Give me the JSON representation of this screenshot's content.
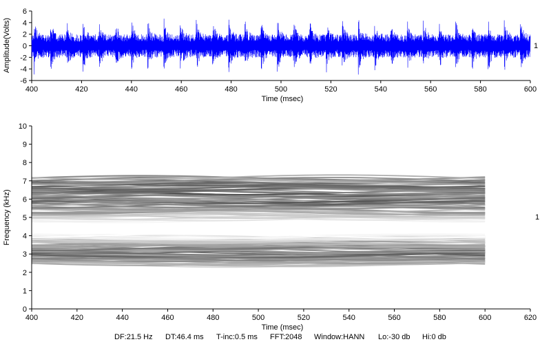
{
  "chart_data": [
    {
      "type": "line",
      "description_free": true,
      "xlabel": "Time (msec)",
      "ylabel": "Amplitude(Volts)",
      "xlim": [
        400,
        600
      ],
      "ylim": [
        -6,
        6
      ],
      "x_ticks": [
        400,
        420,
        440,
        460,
        480,
        500,
        520,
        540,
        560,
        580,
        600
      ],
      "y_ticks": [
        6,
        4,
        2,
        0,
        -2,
        -4,
        -6
      ],
      "channel_label": "1",
      "series_color": "#0000ff",
      "waveform": {
        "baseline_amplitude": 2.0,
        "peak_amplitude": 5.5,
        "pulse_period_ms": 6.5
      }
    },
    {
      "type": "heatmap",
      "xlabel": "Time (msec)",
      "ylabel": "Frequency (kHz)",
      "xlim": [
        400,
        620
      ],
      "ylim": [
        0,
        10
      ],
      "x_ticks": [
        400,
        420,
        440,
        460,
        480,
        500,
        520,
        540,
        560,
        580,
        600,
        620
      ],
      "y_ticks": [
        10,
        9,
        8,
        7,
        6,
        5,
        4,
        3,
        2,
        1,
        0
      ],
      "channel_label": "1",
      "data_extent_ms": [
        400,
        600
      ],
      "bands": [
        {
          "center_khz": 6.3,
          "low_khz": 4.8,
          "high_khz": 7.2,
          "intensity": 0.8
        },
        {
          "center_khz": 3.1,
          "low_khz": 2.4,
          "high_khz": 4.0,
          "intensity": 0.7
        }
      ],
      "color_scale": "grayscale"
    }
  ],
  "params": {
    "df": "DF:21.5 Hz",
    "dt": "DT:46.4 ms",
    "tinc": "T-inc:0.5 ms",
    "fft": "FFT:2048",
    "window": "Window:HANN",
    "lo": "Lo:-30 db",
    "hi": "Hi:0 db"
  }
}
